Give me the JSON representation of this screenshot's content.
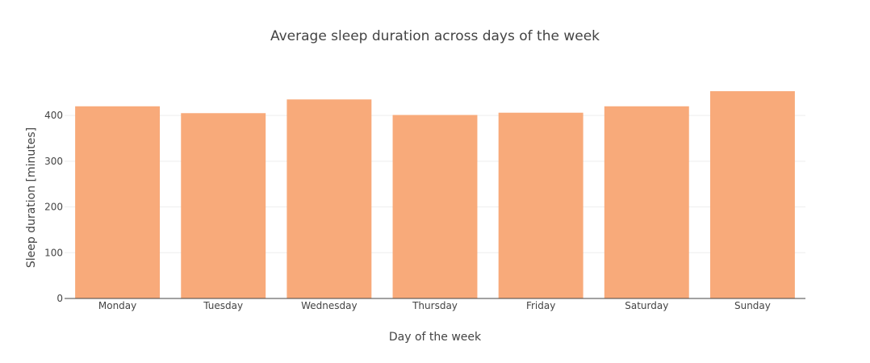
{
  "chart_data": {
    "type": "bar",
    "title": "Average sleep duration across days of the week",
    "xlabel": "Day of the week",
    "ylabel": "Sleep duration [minutes]",
    "categories": [
      "Monday",
      "Tuesday",
      "Wednesday",
      "Thursday",
      "Friday",
      "Saturday",
      "Sunday"
    ],
    "values": [
      420,
      405,
      435,
      401,
      406,
      420,
      453
    ],
    "ylim": [
      0,
      476
    ],
    "yticks": [
      0,
      100,
      200,
      300,
      400
    ],
    "grid": true,
    "colors": {
      "bar": "#f8aa7a",
      "grid": "#eeeeee",
      "axis_line": "#444444",
      "text": "#444444"
    }
  }
}
